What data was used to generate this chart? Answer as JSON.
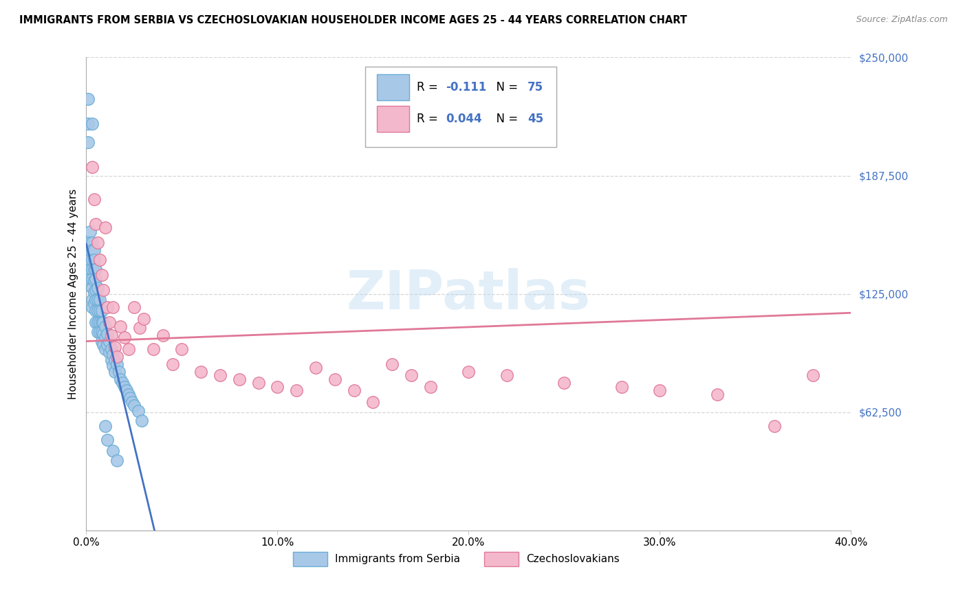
{
  "title": "IMMIGRANTS FROM SERBIA VS CZECHOSLOVAKIAN HOUSEHOLDER INCOME AGES 25 - 44 YEARS CORRELATION CHART",
  "source": "Source: ZipAtlas.com",
  "ylabel": "Householder Income Ages 25 - 44 years",
  "xlim": [
    0.0,
    0.4
  ],
  "ylim": [
    0,
    250000
  ],
  "yticks": [
    0,
    62500,
    125000,
    187500,
    250000
  ],
  "ytick_labels": [
    "",
    "$62,500",
    "$125,000",
    "$187,500",
    "$250,000"
  ],
  "xticks": [
    0.0,
    0.1,
    0.2,
    0.3,
    0.4
  ],
  "xtick_labels": [
    "0.0%",
    "10.0%",
    "20.0%",
    "30.0%",
    "40.0%"
  ],
  "series1_name": "Immigrants from Serbia",
  "series1_color": "#a8c8e8",
  "series1_edge_color": "#6aaed6",
  "series1_R": -0.111,
  "series1_N": 75,
  "series2_name": "Czechoslovakians",
  "series2_color": "#f4b8cc",
  "series2_edge_color": "#e07898",
  "series2_R": 0.044,
  "series2_N": 45,
  "background_color": "#ffffff",
  "grid_color": "#cccccc",
  "watermark": "ZIPatlas",
  "serbia_x": [
    0.001,
    0.001,
    0.001,
    0.002,
    0.002,
    0.002,
    0.002,
    0.002,
    0.002,
    0.003,
    0.003,
    0.003,
    0.003,
    0.003,
    0.003,
    0.003,
    0.003,
    0.004,
    0.004,
    0.004,
    0.004,
    0.004,
    0.004,
    0.005,
    0.005,
    0.005,
    0.005,
    0.005,
    0.005,
    0.006,
    0.006,
    0.006,
    0.006,
    0.006,
    0.007,
    0.007,
    0.007,
    0.007,
    0.008,
    0.008,
    0.008,
    0.008,
    0.009,
    0.009,
    0.009,
    0.01,
    0.01,
    0.01,
    0.011,
    0.011,
    0.012,
    0.012,
    0.013,
    0.013,
    0.014,
    0.014,
    0.015,
    0.015,
    0.016,
    0.017,
    0.018,
    0.019,
    0.02,
    0.021,
    0.022,
    0.023,
    0.024,
    0.025,
    0.027,
    0.029,
    0.01,
    0.011,
    0.003,
    0.014,
    0.016
  ],
  "serbia_y": [
    228000,
    215000,
    205000,
    158000,
    152000,
    148000,
    143000,
    138000,
    133000,
    152000,
    148000,
    143000,
    138000,
    133000,
    128000,
    122000,
    118000,
    148000,
    143000,
    138000,
    132000,
    126000,
    120000,
    138000,
    133000,
    127000,
    122000,
    116000,
    110000,
    128000,
    122000,
    116000,
    110000,
    105000,
    122000,
    116000,
    110000,
    105000,
    116000,
    110000,
    105000,
    100000,
    110000,
    104000,
    98000,
    108000,
    102000,
    96000,
    104000,
    98000,
    100000,
    94000,
    96000,
    90000,
    93000,
    87000,
    90000,
    84000,
    88000,
    84000,
    80000,
    78000,
    76000,
    74000,
    72000,
    70000,
    68000,
    66000,
    63000,
    58000,
    55000,
    48000,
    215000,
    42000,
    37000
  ],
  "czech_x": [
    0.003,
    0.004,
    0.005,
    0.006,
    0.007,
    0.008,
    0.009,
    0.01,
    0.011,
    0.012,
    0.013,
    0.014,
    0.015,
    0.016,
    0.018,
    0.02,
    0.022,
    0.025,
    0.028,
    0.03,
    0.035,
    0.04,
    0.045,
    0.05,
    0.06,
    0.07,
    0.08,
    0.09,
    0.1,
    0.11,
    0.12,
    0.13,
    0.14,
    0.15,
    0.16,
    0.17,
    0.18,
    0.2,
    0.22,
    0.25,
    0.28,
    0.3,
    0.33,
    0.36,
    0.38
  ],
  "czech_y": [
    192000,
    175000,
    162000,
    152000,
    143000,
    135000,
    127000,
    160000,
    118000,
    110000,
    103000,
    118000,
    97000,
    92000,
    108000,
    102000,
    96000,
    118000,
    107000,
    112000,
    96000,
    103000,
    88000,
    96000,
    84000,
    82000,
    80000,
    78000,
    76000,
    74000,
    86000,
    80000,
    74000,
    68000,
    88000,
    82000,
    76000,
    84000,
    82000,
    78000,
    76000,
    74000,
    72000,
    55000,
    82000
  ]
}
